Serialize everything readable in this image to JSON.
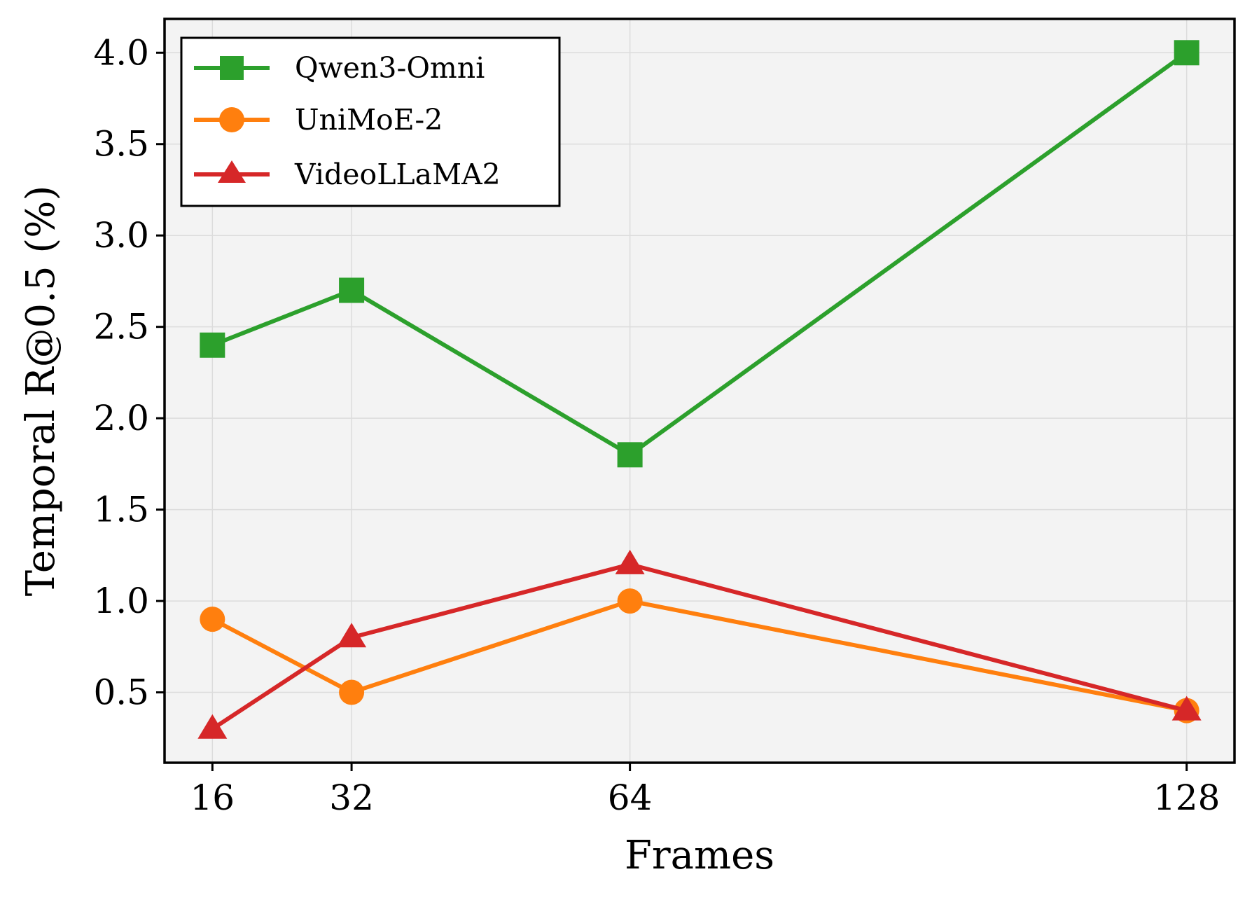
{
  "chart_data": {
    "type": "line",
    "title": "",
    "xlabel": "Frames",
    "ylabel": "Temporal R@0.5 (%)",
    "x": [
      16,
      32,
      64,
      128
    ],
    "x_tick_labels": [
      "16",
      "32",
      "64",
      "128"
    ],
    "xlim": [
      10.5,
      133.5
    ],
    "ylim": [
      0.115,
      4.185
    ],
    "y_ticks": [
      0.5,
      1.0,
      1.5,
      2.0,
      2.5,
      3.0,
      3.5,
      4.0
    ],
    "y_tick_labels": [
      "0.5",
      "1.0",
      "1.5",
      "2.0",
      "2.5",
      "3.0",
      "3.5",
      "4.0"
    ],
    "grid": true,
    "legend_position": "top-left",
    "series": [
      {
        "name": "Qwen3-Omni",
        "values": [
          2.4,
          2.7,
          1.8,
          4.0
        ],
        "color": "#2ca02c",
        "marker": "square"
      },
      {
        "name": "UniMoE-2",
        "values": [
          0.9,
          0.5,
          1.0,
          0.4
        ],
        "color": "#ff7f0e",
        "marker": "circle"
      },
      {
        "name": "VideoLLaMA2",
        "values": [
          0.3,
          0.8,
          1.2,
          0.4
        ],
        "color": "#d62728",
        "marker": "triangle"
      }
    ]
  }
}
